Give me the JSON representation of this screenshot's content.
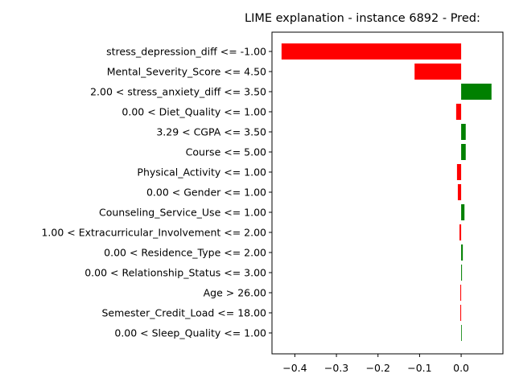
{
  "chart_data": {
    "type": "bar",
    "orientation": "horizontal",
    "title": "LIME explanation - instance 6892 - Pred:",
    "xlabel": "",
    "ylabel": "",
    "xlim": [
      -0.455,
      0.1005
    ],
    "xticks": [
      -0.4,
      -0.3,
      -0.2,
      -0.1,
      0.0
    ],
    "xtick_labels": [
      "−0.4",
      "−0.3",
      "−0.2",
      "−0.1",
      "0.0"
    ],
    "grid": false,
    "colors": {
      "positive": "#008000",
      "negative": "#ff0000"
    },
    "categories": [
      "stress_depression_diff <= -1.00",
      "Mental_Severity_Score <= 4.50",
      "2.00 < stress_anxiety_diff <= 3.50",
      "0.00 < Diet_Quality <= 1.00",
      "3.29 < CGPA <= 3.50",
      "Course <= 5.00",
      "Physical_Activity <= 1.00",
      "0.00 < Gender <= 1.00",
      "Counseling_Service_Use <= 1.00",
      "1.00 < Extracurricular_Involvement <= 2.00",
      "0.00 < Residence_Type <= 2.00",
      "0.00 < Relationship_Status <= 3.00",
      "Age > 26.00",
      "Semester_Credit_Load <= 18.00",
      "0.00 < Sleep_Quality <= 1.00"
    ],
    "values": [
      -0.432,
      -0.112,
      0.073,
      -0.012,
      0.011,
      0.011,
      -0.01,
      -0.008,
      0.008,
      -0.004,
      0.004,
      0.002,
      -0.002,
      -0.002,
      0.001
    ]
  }
}
